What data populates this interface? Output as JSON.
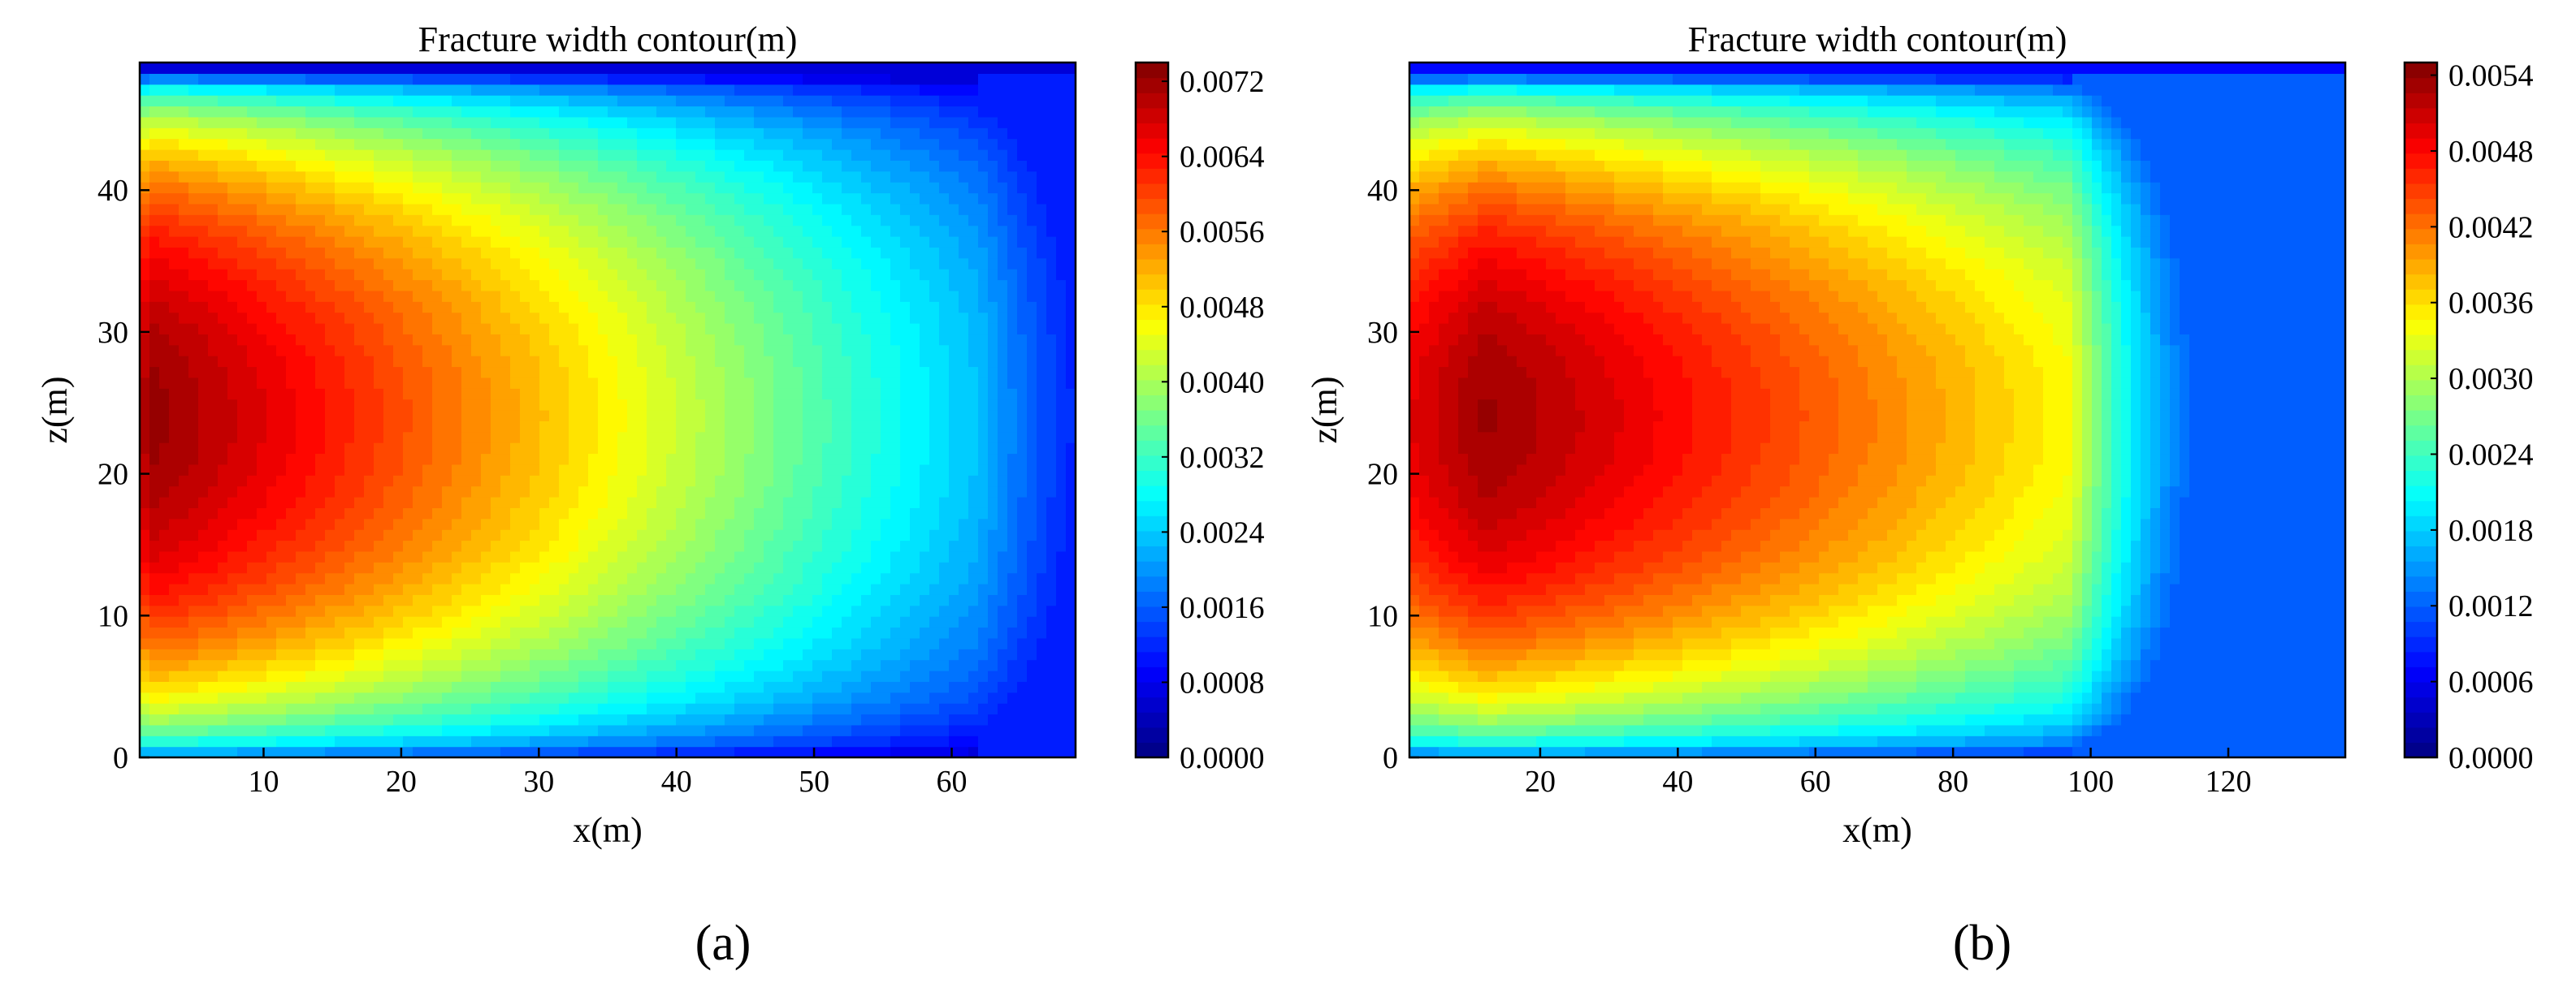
{
  "chart_data": [
    {
      "type": "heatmap",
      "panel_label": "(a)",
      "title": "Fracture width contour(m)",
      "xlabel": "x(m)",
      "ylabel": "z(m)",
      "xlim": [
        1,
        69
      ],
      "ylim": [
        0,
        49
      ],
      "xticks": [
        10,
        20,
        30,
        40,
        50,
        60
      ],
      "yticks": [
        0,
        10,
        20,
        30,
        40
      ],
      "colormap": "jet",
      "colorbar": {
        "range": [
          0,
          0.0074
        ],
        "ticks": [
          "0.0000",
          "0.0008",
          "0.0016",
          "0.0024",
          "0.0032",
          "0.0040",
          "0.0048",
          "0.0056",
          "0.0064",
          "0.0072"
        ]
      },
      "field": {
        "max_value": 0.0073,
        "peak_x": 2,
        "peak_z": 24.5,
        "tip_x": 62,
        "tip_value": 0.0024,
        "height": 48,
        "outside_value": 0.0012
      }
    },
    {
      "type": "heatmap",
      "panel_label": "(b)",
      "title": "Fracture width contour(m)",
      "xlabel": "x(m)",
      "ylabel": "z(m)",
      "xlim": [
        1,
        137
      ],
      "ylim": [
        0,
        49
      ],
      "xticks": [
        20,
        40,
        60,
        80,
        100,
        120
      ],
      "yticks": [
        0,
        10,
        20,
        30,
        40
      ],
      "colormap": "jet",
      "colorbar": {
        "range": [
          0,
          0.0055
        ],
        "ticks": [
          "0.0000",
          "0.0006",
          "0.0012",
          "0.0018",
          "0.0024",
          "0.0030",
          "0.0036",
          "0.0042",
          "0.0048",
          "0.0054"
        ]
      },
      "field": {
        "max_value": 0.0054,
        "peak_x": 12,
        "peak_z": 24.5,
        "tip_x": 97,
        "tip_value": 0.0035,
        "height": 48,
        "outside_value": 0.0012
      }
    }
  ]
}
